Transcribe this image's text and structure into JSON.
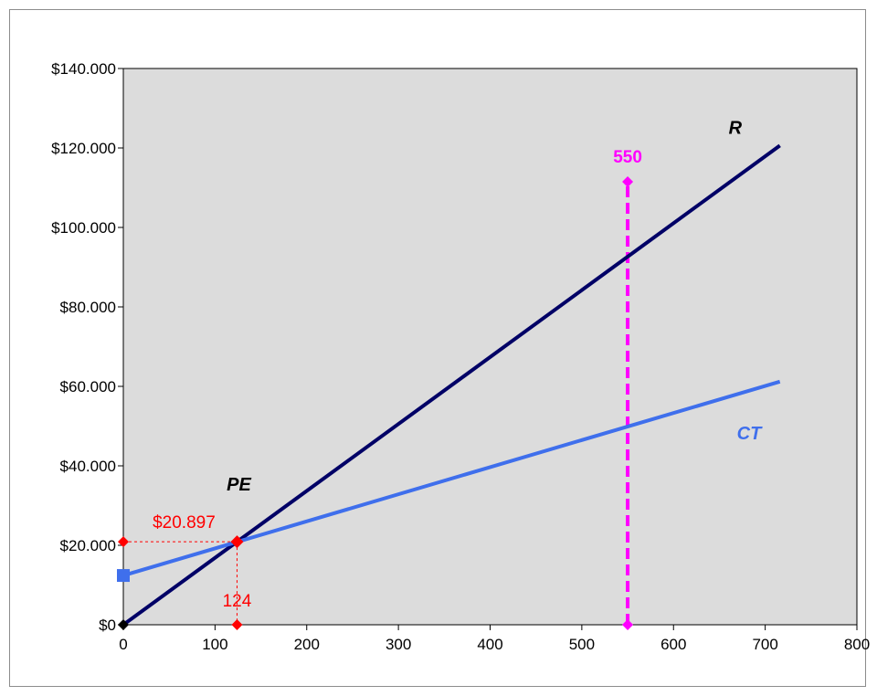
{
  "chart_data": {
    "type": "line",
    "title": "",
    "xlabel": "",
    "ylabel": "",
    "xlim": [
      0,
      800
    ],
    "ylim": [
      0,
      140000
    ],
    "x_ticks": [
      0,
      100,
      200,
      300,
      400,
      500,
      600,
      700,
      800
    ],
    "x_tick_labels": [
      "0",
      "100",
      "200",
      "300",
      "400",
      "500",
      "600",
      "700",
      "800"
    ],
    "y_ticks": [
      0,
      20000,
      40000,
      60000,
      80000,
      100000,
      120000,
      140000
    ],
    "y_tick_labels": [
      "$0",
      "$20.000",
      "$40.000",
      "$60.000",
      "$80.000",
      "$100.000",
      "$120.000",
      "$140.000"
    ],
    "grid": false,
    "plot_background": "#dcdcdc",
    "series": [
      {
        "name": "R",
        "color": "#000066",
        "x": [
          0,
          716
        ],
        "y": [
          0,
          120600
        ]
      },
      {
        "name": "CT",
        "color": "#3f6fec",
        "x": [
          0,
          716
        ],
        "y": [
          12400,
          61200
        ]
      }
    ],
    "annotations": {
      "pe_label": "PE",
      "breakeven_x": 124,
      "breakeven_y": 20897,
      "breakeven_x_label": "124",
      "breakeven_y_label": "$20.897",
      "marker_x": 550,
      "marker_top_y": 111500,
      "marker_label": "550",
      "red_color": "#ff0000",
      "magenta_color": "#ff00ff"
    }
  }
}
